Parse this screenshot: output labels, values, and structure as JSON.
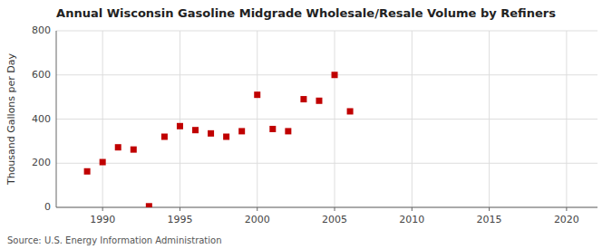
{
  "chart_data": {
    "type": "scatter",
    "title": "Annual Wisconsin Gasoline Midgrade Wholesale/Resale Volume by Refiners",
    "y_label": "Thousand Gallons per Day",
    "source": "Source: U.S. Energy Information Administration",
    "x": [
      1989,
      1990,
      1991,
      1992,
      1993,
      1994,
      1995,
      1996,
      1997,
      1998,
      1999,
      2000,
      2001,
      2002,
      2003,
      2004,
      2005,
      2006
    ],
    "values": [
      163,
      205,
      272,
      262,
      5,
      320,
      368,
      350,
      335,
      320,
      345,
      510,
      355,
      345,
      490,
      483,
      600,
      435
    ],
    "color": "#c00000",
    "marker": "square",
    "xlim": [
      1987,
      2022
    ],
    "ylim": [
      0,
      800
    ],
    "xticks": [
      1990,
      1995,
      2000,
      2005,
      2010,
      2015,
      2020
    ],
    "yticks": [
      0,
      200,
      400,
      600,
      800
    ],
    "grid": true
  }
}
